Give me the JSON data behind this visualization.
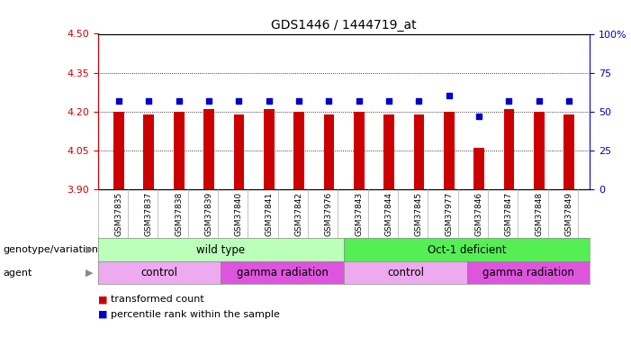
{
  "title": "GDS1446 / 1444719_at",
  "samples": [
    "GSM37835",
    "GSM37837",
    "GSM37838",
    "GSM37839",
    "GSM37840",
    "GSM37841",
    "GSM37842",
    "GSM37976",
    "GSM37843",
    "GSM37844",
    "GSM37845",
    "GSM37977",
    "GSM37846",
    "GSM37847",
    "GSM37848",
    "GSM37849"
  ],
  "bar_values": [
    4.2,
    4.19,
    4.2,
    4.21,
    4.19,
    4.21,
    4.2,
    4.19,
    4.2,
    4.19,
    4.19,
    4.2,
    4.06,
    4.21,
    4.2,
    4.19
  ],
  "dot_values": [
    57,
    57,
    57,
    57,
    57,
    57,
    57,
    57,
    57,
    57,
    57,
    60,
    47,
    57,
    57,
    57
  ],
  "ymin": 3.9,
  "ymax": 4.5,
  "yticks": [
    3.9,
    4.05,
    4.2,
    4.35,
    4.5
  ],
  "y2ticks": [
    0,
    25,
    50,
    75,
    100
  ],
  "bar_color": "#cc0000",
  "dot_color": "#0000cc",
  "genotype_groups": [
    {
      "label": "wild type",
      "start": 0,
      "end": 8,
      "color": "#bbffbb"
    },
    {
      "label": "Oct-1 deficient",
      "start": 8,
      "end": 16,
      "color": "#55ee55"
    }
  ],
  "agent_groups": [
    {
      "label": "control",
      "start": 0,
      "end": 4,
      "color": "#eeaaee"
    },
    {
      "label": "gamma radiation",
      "start": 4,
      "end": 8,
      "color": "#dd55dd"
    },
    {
      "label": "control",
      "start": 8,
      "end": 12,
      "color": "#eeaaee"
    },
    {
      "label": "gamma radiation",
      "start": 12,
      "end": 16,
      "color": "#dd55dd"
    }
  ],
  "legend_items": [
    {
      "label": "transformed count",
      "color": "#cc0000"
    },
    {
      "label": "percentile rank within the sample",
      "color": "#0000cc"
    }
  ],
  "bg_color": "#ffffff",
  "plot_bg_color": "#ffffff",
  "ylabel_left_color": "#cc0000",
  "ylabel_right_color": "#0000cc",
  "xtick_bg_color": "#dddddd",
  "border_color": "#000000"
}
